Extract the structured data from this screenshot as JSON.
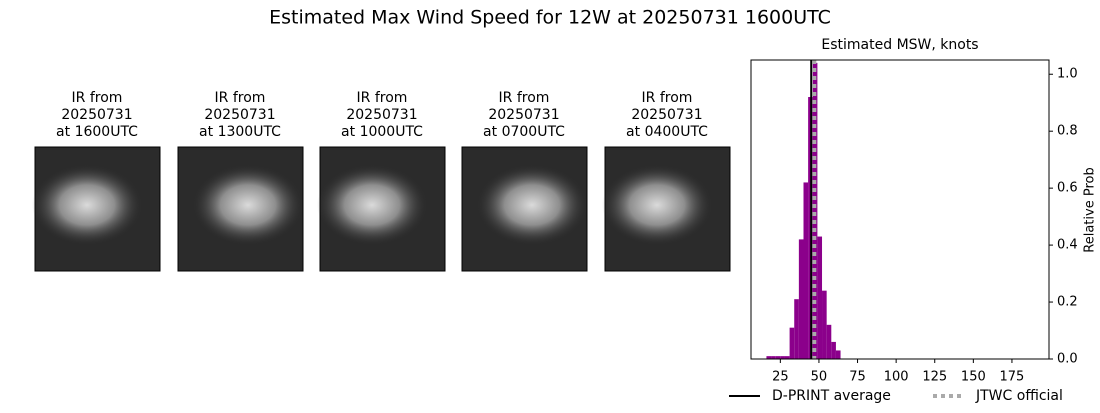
{
  "title": "Estimated Max Wind Speed for 12W at 20250731 1600UTC",
  "panels": [
    {
      "title": [
        "IR from",
        "20250731",
        "at 1600UTC"
      ]
    },
    {
      "title": [
        "IR from",
        "20250731",
        "at 1300UTC"
      ]
    },
    {
      "title": [
        "IR from",
        "20250731",
        "at 1000UTC"
      ]
    },
    {
      "title": [
        "IR from",
        "20250731",
        "at 0700UTC"
      ]
    },
    {
      "title": [
        "IR from",
        "20250731",
        "at 0400UTC"
      ]
    }
  ],
  "chart_data": {
    "type": "histogram",
    "title": "Estimated MSW, knots",
    "ylabel": "Relative Prob",
    "bins": [
      16,
      19,
      22,
      25,
      28,
      31,
      34,
      37,
      40,
      43,
      46,
      49,
      52,
      55,
      58,
      61,
      64
    ],
    "values": [
      0.01,
      0.01,
      0.01,
      0.01,
      0.01,
      0.11,
      0.21,
      0.42,
      0.62,
      0.92,
      1.04,
      0.43,
      0.24,
      0.12,
      0.06,
      0.03
    ],
    "color": "#8b008b",
    "xlim": [
      6,
      199
    ],
    "ylim": [
      0,
      1.05
    ],
    "xticks": [
      25,
      50,
      75,
      100,
      125,
      150,
      175
    ],
    "yticks": [
      {
        "value": 0,
        "label": "0.0"
      },
      {
        "value": 0.2,
        "label": "0.2"
      },
      {
        "value": 0.4,
        "label": "0.4"
      },
      {
        "value": 0.6,
        "label": "0.6"
      },
      {
        "value": 0.8,
        "label": "0.8"
      },
      {
        "value": 1.0,
        "label": "1.0"
      }
    ],
    "lines": [
      {
        "name": "D-PRINT average",
        "value": 45,
        "color": "#000000",
        "style": "solid"
      },
      {
        "name": "JTWC official",
        "value": 47,
        "color": "#aaaaaa",
        "style": "dotted"
      }
    ]
  }
}
